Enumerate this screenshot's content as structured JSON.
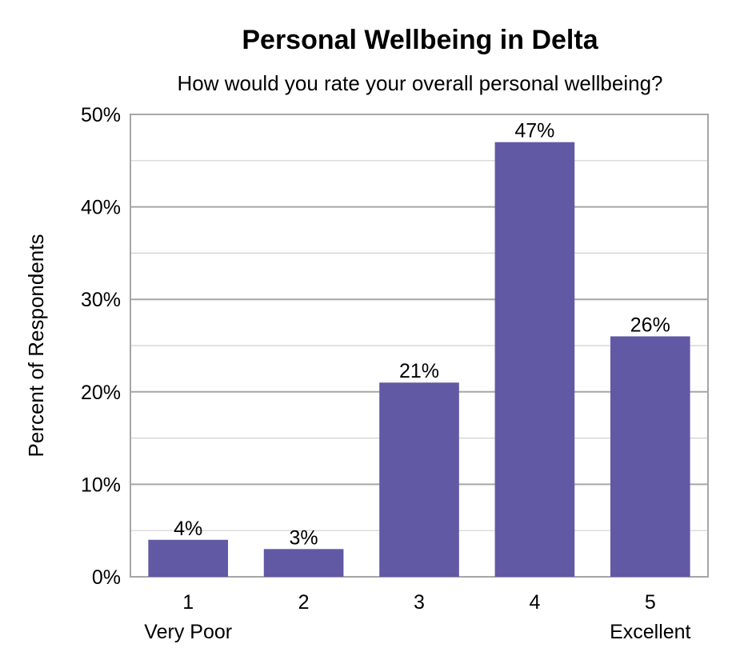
{
  "chart_data": {
    "type": "bar",
    "title": "Personal Wellbeing in Delta",
    "subtitle": "How would you rate your overall personal wellbeing?",
    "ylabel": "Percent of Respondents",
    "xlabel": "",
    "categories": [
      "1",
      "2",
      "3",
      "4",
      "5"
    ],
    "category_sublabels": [
      "Very Poor",
      "",
      "",
      "",
      "Excellent"
    ],
    "values": [
      4,
      3,
      21,
      47,
      26
    ],
    "data_labels": [
      "4%",
      "3%",
      "21%",
      "47%",
      "26%"
    ],
    "ylim": [
      0,
      50
    ],
    "y_ticks": [
      0,
      10,
      20,
      30,
      40,
      50
    ],
    "y_tick_labels": [
      "0%",
      "10%",
      "20%",
      "30%",
      "40%",
      "50%"
    ],
    "grid": true,
    "bar_color": "#6159A4",
    "legend": "none"
  }
}
